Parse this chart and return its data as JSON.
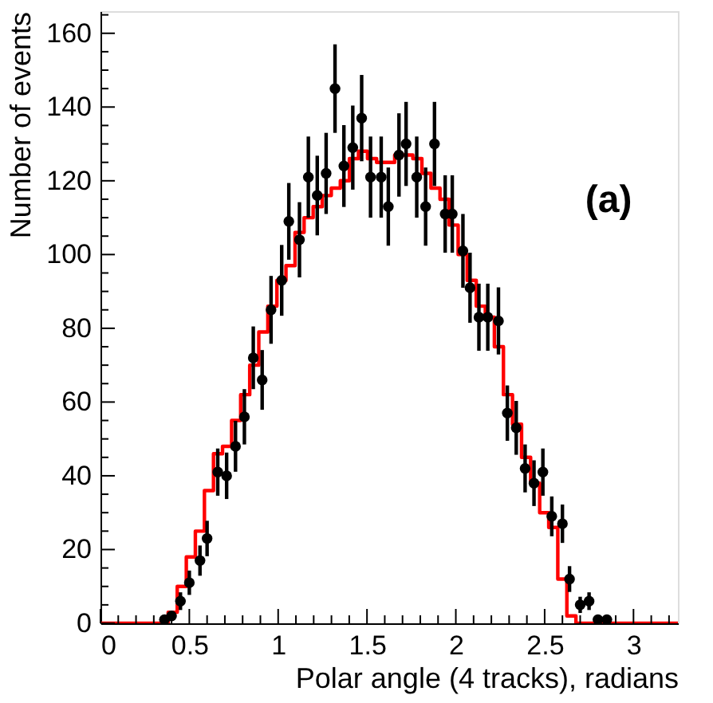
{
  "chart_data": {
    "type": "histogram",
    "xlabel": "Polar angle (4 tracks), radians",
    "ylabel": "Number of events",
    "annotations": [
      "(a)"
    ],
    "xlim": [
      0,
      3.25
    ],
    "ylim": [
      0,
      166
    ],
    "xticks": [
      0,
      {
        "value": 0.1,
        "label": null
      },
      {
        "value": 0.2,
        "label": null
      },
      {
        "value": 0.3,
        "label": null
      },
      {
        "value": 0.4,
        "label": null
      },
      0.5,
      {
        "value": 0.6,
        "label": null
      },
      {
        "value": 0.7,
        "label": null
      },
      {
        "value": 0.8,
        "label": null
      },
      {
        "value": 0.9,
        "label": null
      },
      1,
      {
        "value": 1.1,
        "label": null
      },
      {
        "value": 1.2,
        "label": null
      },
      {
        "value": 1.3,
        "label": null
      },
      {
        "value": 1.4,
        "label": null
      },
      1.5,
      {
        "value": 1.6,
        "label": null
      },
      {
        "value": 1.7,
        "label": null
      },
      {
        "value": 1.8,
        "label": null
      },
      {
        "value": 1.9,
        "label": null
      },
      2,
      {
        "value": 2.1,
        "label": null
      },
      {
        "value": 2.2,
        "label": null
      },
      {
        "value": 2.3,
        "label": null
      },
      {
        "value": 2.4,
        "label": null
      },
      2.5,
      {
        "value": 2.6,
        "label": null
      },
      {
        "value": 2.7,
        "label": null
      },
      {
        "value": 2.8,
        "label": null
      },
      {
        "value": 2.9,
        "label": null
      },
      3,
      {
        "value": 3.1,
        "label": null
      },
      {
        "value": 3.2,
        "label": null
      }
    ],
    "yticks": [
      0,
      {
        "value": 5,
        "label": null
      },
      {
        "value": 10,
        "label": null
      },
      {
        "value": 15,
        "label": null
      },
      20,
      {
        "value": 25,
        "label": null
      },
      {
        "value": 30,
        "label": null
      },
      {
        "value": 35,
        "label": null
      },
      40,
      {
        "value": 45,
        "label": null
      },
      {
        "value": 50,
        "label": null
      },
      {
        "value": 55,
        "label": null
      },
      60,
      {
        "value": 65,
        "label": null
      },
      {
        "value": 70,
        "label": null
      },
      {
        "value": 75,
        "label": null
      },
      80,
      {
        "value": 85,
        "label": null
      },
      {
        "value": 90,
        "label": null
      },
      {
        "value": 95,
        "label": null
      },
      100,
      {
        "value": 105,
        "label": null
      },
      {
        "value": 110,
        "label": null
      },
      {
        "value": 115,
        "label": null
      },
      120,
      {
        "value": 125,
        "label": null
      },
      {
        "value": 130,
        "label": null
      },
      {
        "value": 135,
        "label": null
      },
      140,
      {
        "value": 145,
        "label": null
      },
      {
        "value": 150,
        "label": null
      },
      {
        "value": 155,
        "label": null
      },
      160,
      {
        "value": 165,
        "label": null
      }
    ],
    "grid": false,
    "series": [
      {
        "color": "#ff0000",
        "bins": [
          0,
          0.33,
          0.381,
          0.432,
          0.483,
          0.534,
          0.585,
          0.636,
          0.687,
          0.738,
          0.789,
          0.84,
          0.891,
          0.942,
          0.993,
          1.044,
          1.095,
          1.146,
          1.197,
          1.248,
          1.299,
          1.35,
          1.401,
          1.452,
          1.503,
          1.554,
          1.605,
          1.656,
          1.707,
          1.758,
          1.809,
          1.86,
          1.911,
          1.962,
          2.013,
          2.064,
          2.115,
          2.166,
          2.217,
          2.268,
          2.319,
          2.37,
          2.421,
          2.472,
          2.523,
          2.574,
          2.625,
          2.676,
          2.727,
          2.778,
          2.829,
          2.88,
          3.25
        ],
        "values": [
          0,
          0,
          3,
          10,
          18,
          25,
          36,
          46,
          48,
          55,
          62,
          70,
          79,
          86,
          93,
          97,
          106,
          110,
          113,
          116,
          118,
          120,
          126,
          128,
          126,
          125,
          125,
          127,
          127,
          126,
          122,
          118,
          115,
          108,
          100,
          93,
          86,
          83,
          75,
          62,
          54,
          45,
          38,
          30,
          26,
          12,
          2,
          0,
          0,
          0,
          0,
          0
        ]
      },
      {
        "type": "scatter",
        "color": "#000000",
        "marker": "circle",
        "x": [
          0.36,
          0.4,
          0.45,
          0.5,
          0.56,
          0.6,
          0.66,
          0.71,
          0.76,
          0.81,
          0.86,
          0.91,
          0.96,
          1.02,
          1.06,
          1.12,
          1.17,
          1.22,
          1.27,
          1.32,
          1.37,
          1.42,
          1.47,
          1.52,
          1.58,
          1.62,
          1.68,
          1.72,
          1.78,
          1.83,
          1.88,
          1.94,
          1.98,
          2.04,
          2.08,
          2.13,
          2.18,
          2.24,
          2.29,
          2.34,
          2.39,
          2.44,
          2.49,
          2.54,
          2.6,
          2.64,
          2.7,
          2.75,
          2.8,
          2.85
        ],
        "values": [
          1,
          2,
          6,
          11,
          17,
          23,
          41,
          40,
          48,
          56,
          72,
          66,
          85,
          93,
          109,
          104,
          121,
          116,
          122,
          145,
          124,
          129,
          137,
          121,
          121,
          113,
          127,
          130,
          121,
          113,
          130,
          111,
          111,
          101,
          91,
          83,
          83,
          82,
          57,
          53,
          42,
          38,
          41,
          29,
          27,
          12,
          5,
          6,
          1,
          1
        ],
        "errors": [
          null,
          null,
          2.4,
          3.3,
          4.1,
          4.8,
          6.4,
          6.3,
          6.9,
          7.5,
          8.5,
          8.1,
          9.2,
          9.6,
          10.4,
          10.2,
          11,
          10.8,
          11,
          12,
          11.1,
          11.4,
          11.7,
          11,
          11,
          10.6,
          11.3,
          11.4,
          11,
          10.6,
          11.4,
          10.5,
          10.5,
          10,
          9.5,
          9.1,
          9.1,
          9.1,
          7.5,
          7.3,
          6.5,
          6.2,
          6.4,
          5.4,
          5.2,
          3.5,
          2.2,
          2.4,
          null,
          null
        ]
      }
    ]
  }
}
